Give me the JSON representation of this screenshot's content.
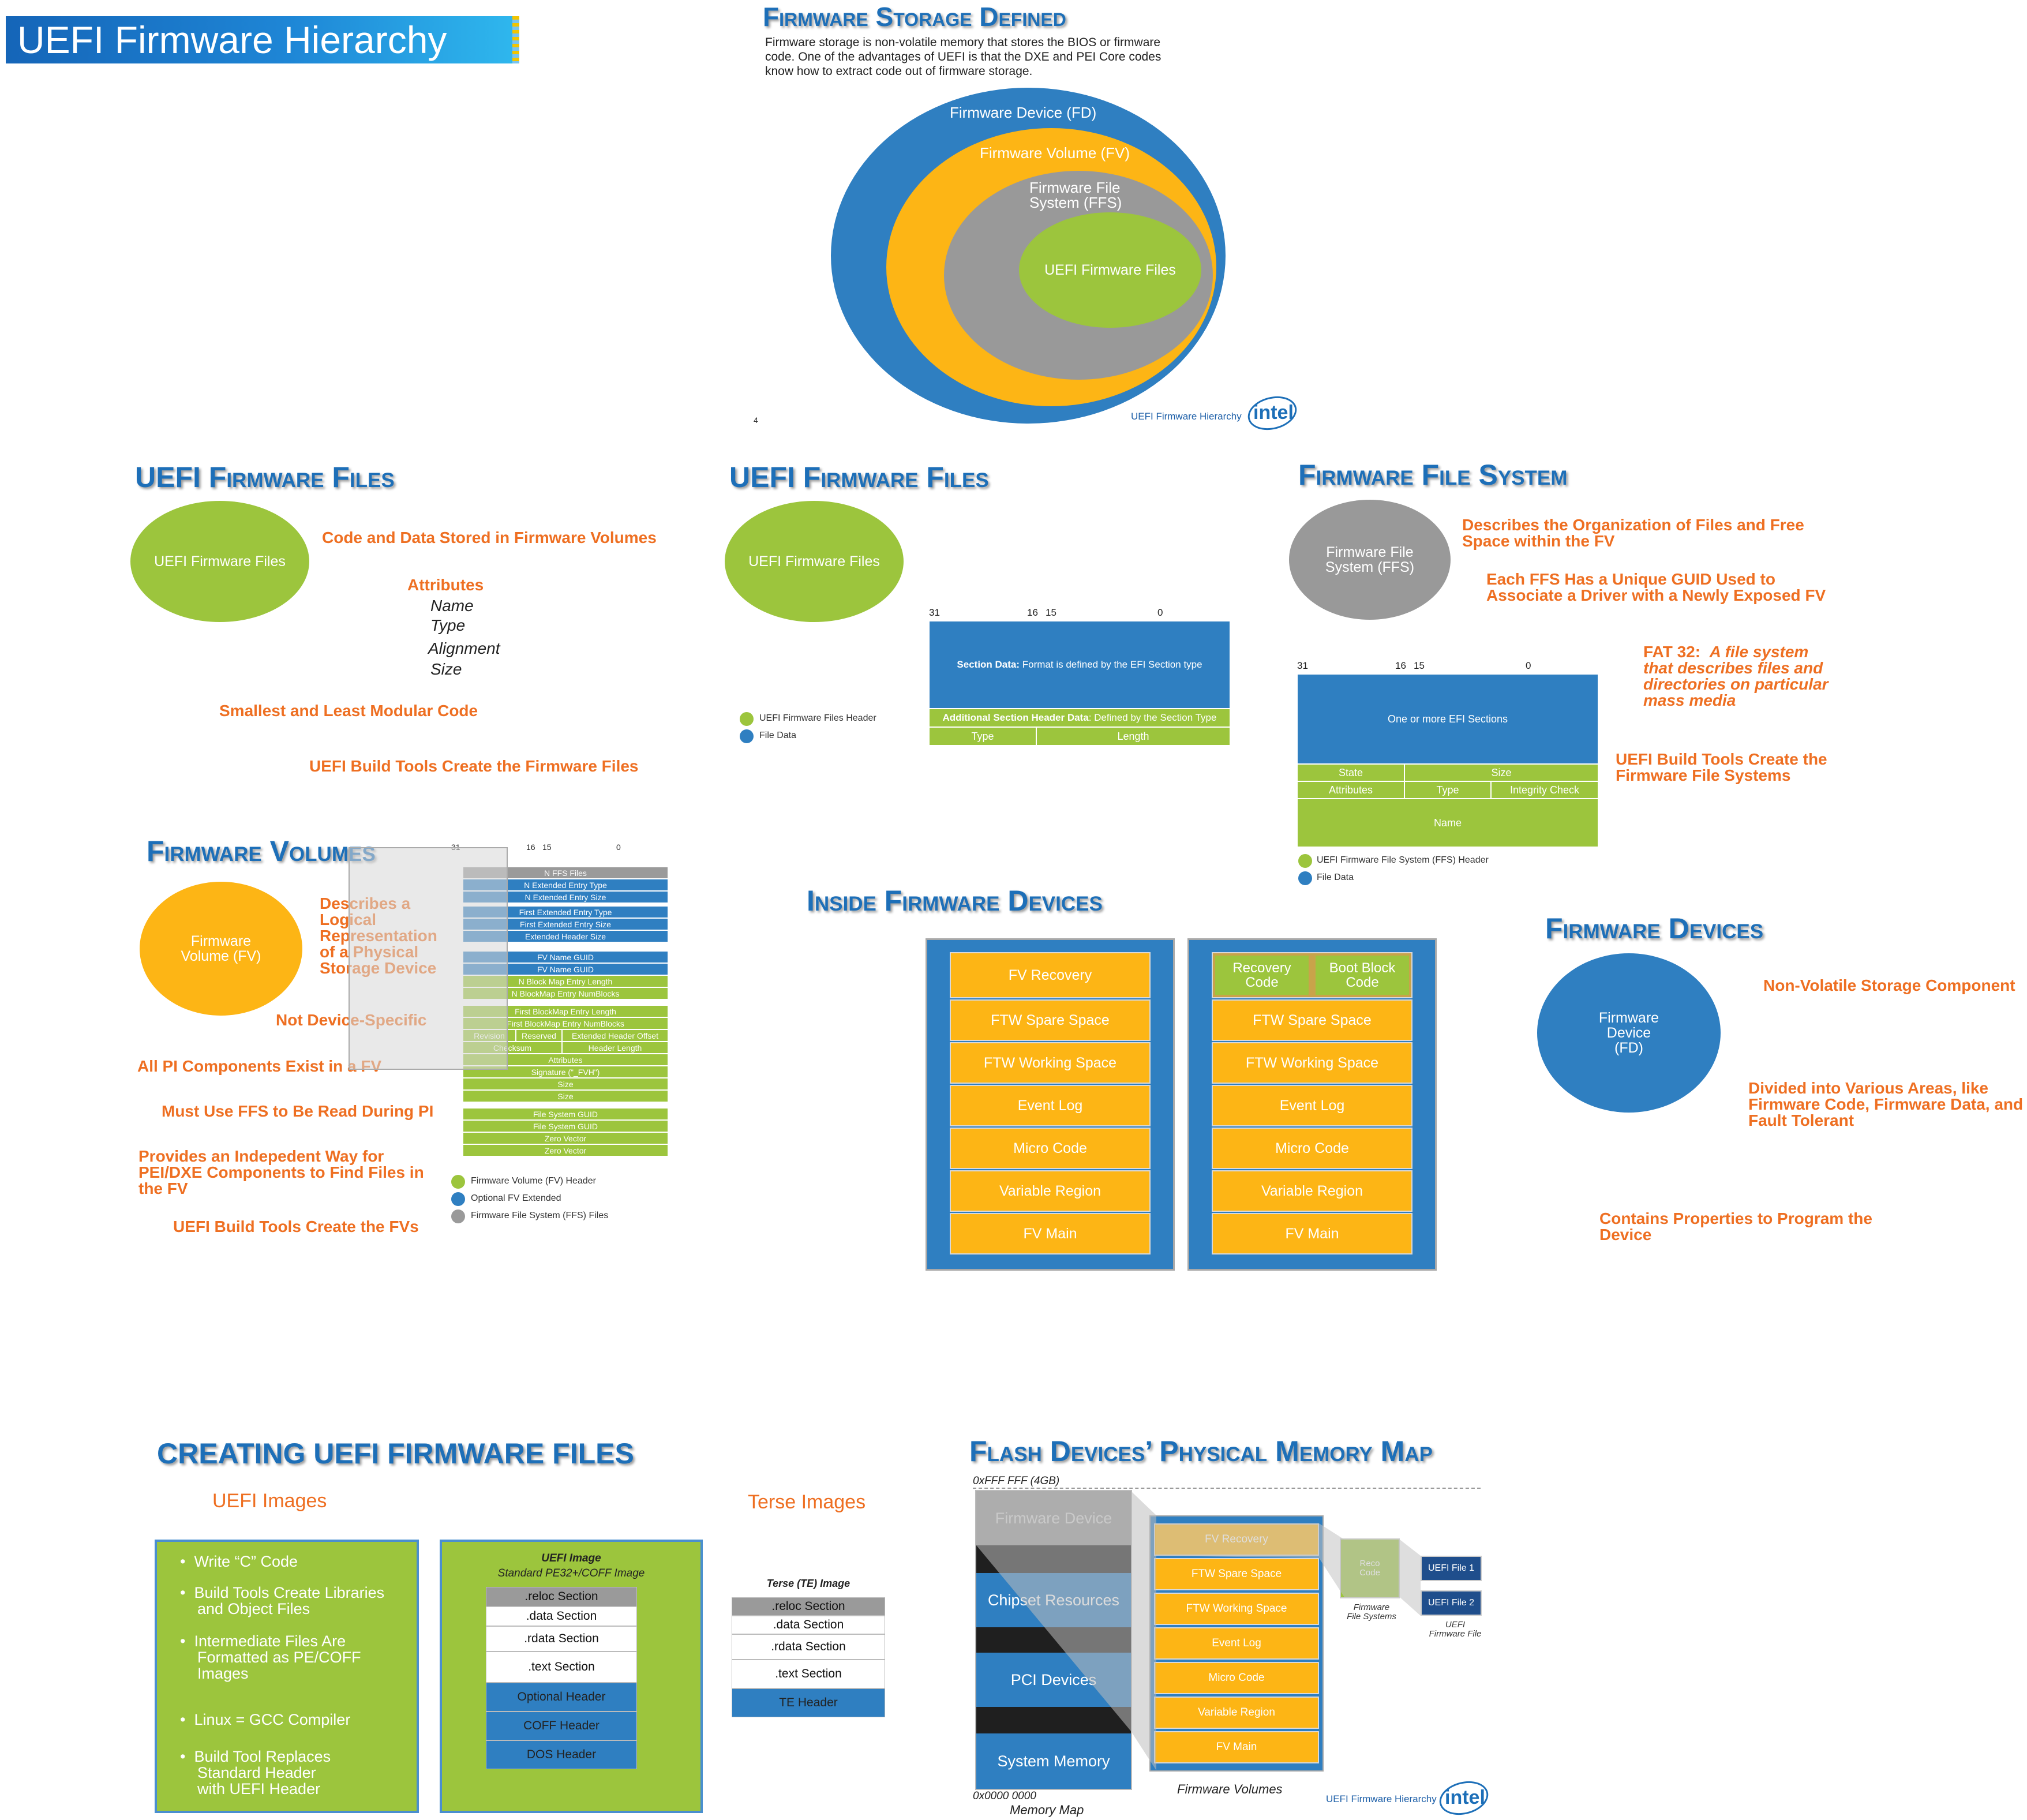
{
  "main_title": "UEFI Firmware Hierarchy",
  "storage": {
    "title": "Firmware Storage Defined",
    "desc_lines": [
      "Firmware storage is non-volatile memory that stores the BIOS or firmware",
      "code.  One of the advantages of UEFI is that the DXE and PEI Core codes",
      "know how to extract code out of firmware storage."
    ],
    "fd": "Firmware Device (FD)",
    "fv": "Firmware Volume (FV)",
    "ffs_l1": "Firmware File",
    "ffs_l2": "System (FFS)",
    "files": "UEFI Firmware Files",
    "page_no": "4",
    "footer": "UEFI Firmware Hierarchy",
    "logo": "intel"
  },
  "files1": {
    "title": "UEFI Firmware Files",
    "ellipse": "UEFI Firmware Files",
    "b1": "Code and Data Stored in Firmware Volumes",
    "b2": "Attributes",
    "attrs": [
      "Name",
      "Type",
      "Alignment",
      "Size"
    ],
    "b3": "Smallest and Least Modular Code",
    "b4": "UEFI Build Tools Create the Firmware Files"
  },
  "files2": {
    "title": "UEFI Firmware Files",
    "ellipse": "UEFI Firmware Files",
    "bits": [
      "31",
      "16",
      "15",
      "0"
    ],
    "sec_data_bold": "Section Data:",
    "sec_data_rest": " Format is defined by the EFI Section type",
    "add_hdr_bold": "Additional Section Header Data",
    "add_hdr_rest": ": Defined by the Section Type",
    "type": "Type",
    "length": "Length",
    "leg1": "UEFI Firmware Files Header",
    "leg2": "File Data"
  },
  "ffs": {
    "title": "Firmware File System",
    "ellipse_l1": "Firmware File",
    "ellipse_l2": "System (FFS)",
    "b1_l1": "Describes the Organization of Files and Free",
    "b1_l2": "Space within the FV",
    "b2_l1": "Each FFS Has a Unique GUID Used to",
    "b2_l2": "Associate a Driver with a Newly Exposed FV",
    "fat_l1a": "FAT 32:",
    "fat_l1b": "A file system",
    "fat_l2": "that describes files and",
    "fat_l3": "directories on particular",
    "fat_l4": "mass media",
    "b4_l1": "UEFI Build Tools Create the",
    "b4_l2": "Firmware File Systems",
    "bits": [
      "31",
      "16",
      "15",
      "0"
    ],
    "sections": "One or more EFI Sections",
    "state": "State",
    "size": "Size",
    "attributes": "Attributes",
    "type": "Type",
    "integrity": "Integrity Check",
    "name": "Name",
    "leg1": "UEFI Firmware File System (FFS) Header",
    "leg2": "File Data"
  },
  "fv": {
    "title": "Firmware Volumes",
    "ellipse_l1": "Firmware",
    "ellipse_l2": "Volume (FV)",
    "b1": [
      "Describes a",
      "Logical",
      "Representation",
      "of a Physical",
      "Storage Device"
    ],
    "b2": "Not Device-Specific",
    "b3": "All PI Components Exist in a FV",
    "b4": "Must Use FFS to Be Read During PI",
    "b5": [
      "Provides an Indepedent Way for",
      "PEI/DXE Components to Find Files in",
      "the FV"
    ],
    "b6": "UEFI Build Tools Create the FVs",
    "bits": [
      "31",
      "16",
      "15",
      "0"
    ],
    "rows": [
      "N FFS Files",
      "N Extended Entry Type",
      "N Extended Entry Size",
      "First Extended Entry Type",
      "First Extended Entry Size",
      "Extended Header Size",
      "FV Name GUID",
      "FV Name GUID",
      "N Block Map Entry Length",
      "N BlockMap Entry NumBlocks",
      "First BlockMap Entry Length",
      "First BlockMap Entry NumBlocks",
      "Revision",
      "Reserved",
      "Extended Header Offset",
      "Checksum",
      "Header Length",
      "Attributes",
      "Signature (\"_FVH\")",
      "Size",
      "Size",
      "File System GUID",
      "File System GUID",
      "Zero Vector",
      "Zero Vector"
    ],
    "leg1": "Firmware Volume (FV) Header",
    "leg2": "Optional FV Extended",
    "leg3": "Firmware File System (FFS) Files"
  },
  "inside": {
    "title": "Inside Firmware Devices",
    "left": [
      "FV Recovery",
      "FTW Spare Space",
      "FTW Working Space",
      "Event Log",
      "Micro Code",
      "Variable Region",
      "FV Main"
    ],
    "recovery_l1": "Recovery",
    "recovery_l2": "Code",
    "bootblock_l1": "Boot Block",
    "bootblock_l2": "Code",
    "right": [
      "FTW Spare Space",
      "FTW Working Space",
      "Event Log",
      "Micro Code",
      "Variable Region",
      "FV Main"
    ]
  },
  "fd": {
    "title": "Firmware Devices",
    "ellipse": [
      "Firmware",
      "Device",
      "(FD)"
    ],
    "b1": "Non-Volatile Storage Component",
    "b2": [
      "Divided into Various Areas, like",
      "Firmware Code, Firmware Data, and",
      "Fault Tolerant"
    ],
    "b3": [
      "Contains Properties to Program the",
      "Device"
    ]
  },
  "creating": {
    "title": "Creating UEFI Firmware Files",
    "uefi_images": "UEFI Images",
    "terse_images": "Terse Images",
    "bullets": [
      [
        "Write “C” Code"
      ],
      [
        "Build Tools Create Libraries",
        "and Object Files"
      ],
      [
        "Intermediate Files Are",
        "Formatted as PE/COFF",
        "Images"
      ],
      [
        "Linux = GCC Compiler"
      ],
      [
        "Build Tool Replaces",
        "Standard Header",
        "with UEFI Header"
      ]
    ],
    "uefi_image_title": "UEFI Image",
    "uefi_image_sub": "Standard PE32+/COFF Image",
    "pe_sections": [
      ".reloc Section",
      ".data Section",
      ".rdata Section",
      ".text Section",
      "Optional Header",
      "COFF Header",
      "DOS Header"
    ],
    "te_title": "Terse (TE) Image",
    "te_sections": [
      ".reloc Section",
      ".data Section",
      ".rdata Section",
      ".text Section",
      "TE Header"
    ]
  },
  "flash": {
    "title": "Flash Devices’ Physical Memory Map",
    "top_addr": "0xFFF FFF (4GB)",
    "bottom_addr": "0x0000 0000",
    "memory_map": "Memory Map",
    "regions": [
      "Firmware Device",
      "Chipset Resources",
      "PCI Devices",
      "System Memory"
    ],
    "fv_list": [
      "FV Recovery",
      "FTW Spare Space",
      "FTW Working Space",
      "Event Log",
      "Micro Code",
      "Variable Region",
      "FV Main"
    ],
    "firmware_volumes": "Firmware Volumes",
    "reco_l1": "Reco",
    "reco_l2": "Code",
    "ffs_caption_l1": "Firmware",
    "ffs_caption_l2": "File Systems",
    "file1": "UEFI File 1",
    "file2": "UEFI File 2",
    "uefi_caption_l1": "UEFI",
    "uefi_caption_l2": "Firmware File",
    "footer": "UEFI Firmware Hierarchy",
    "logo": "intel"
  },
  "colors": {
    "blue": "#2f7fc1",
    "orange_text": "#ee6f22",
    "yellow": "#fdb515",
    "green": "#9cc53d",
    "gray": "#9a9a9a"
  }
}
